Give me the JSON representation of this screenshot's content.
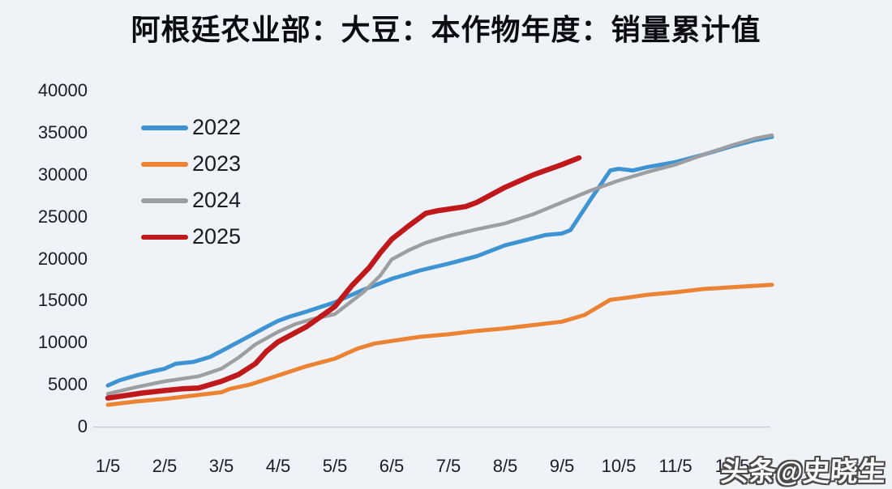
{
  "watermark": "头条@史晓生",
  "colors": {
    "background": "#eff2f7",
    "axis_line": "#c9cdd5",
    "tick_text": "#1c1c26",
    "title_text": "#0b0b12"
  },
  "chart_data": {
    "type": "line",
    "title": "阿根廷农业部：大豆：本作物年度：销量累计值",
    "xlabel": "",
    "ylabel": "",
    "x_tick_labels": [
      "1/5",
      "2/5",
      "3/5",
      "4/5",
      "5/5",
      "6/5",
      "7/5",
      "8/5",
      "9/5",
      "10/5",
      "11/5",
      "12/5"
    ],
    "y_ticks": [
      0,
      5000,
      10000,
      15000,
      20000,
      25000,
      30000,
      35000,
      40000
    ],
    "ylim": [
      0,
      40000
    ],
    "xlim_months": [
      1,
      12.7
    ],
    "grid": false,
    "legend_position": "upper-left-inside",
    "units_note": "cumulative sales, months labeled as day/5",
    "series": [
      {
        "name": "2022",
        "color": "#3e93d3",
        "stroke_width": 5,
        "points": [
          [
            1,
            4900
          ],
          [
            1.2,
            5500
          ],
          [
            1.5,
            6100
          ],
          [
            1.8,
            6600
          ],
          [
            2,
            6900
          ],
          [
            2.2,
            7500
          ],
          [
            2.5,
            7700
          ],
          [
            2.8,
            8300
          ],
          [
            3,
            9000
          ],
          [
            3.5,
            10800
          ],
          [
            3.8,
            11900
          ],
          [
            4,
            12600
          ],
          [
            4.2,
            13100
          ],
          [
            4.5,
            13700
          ],
          [
            5,
            14800
          ],
          [
            5.5,
            16300
          ],
          [
            6,
            17600
          ],
          [
            6.5,
            18600
          ],
          [
            7,
            19400
          ],
          [
            7.5,
            20300
          ],
          [
            8,
            21600
          ],
          [
            8.3,
            22100
          ],
          [
            8.7,
            22800
          ],
          [
            9,
            23000
          ],
          [
            9.15,
            23400
          ],
          [
            9.5,
            27000
          ],
          [
            9.85,
            30500
          ],
          [
            10,
            30700
          ],
          [
            10.25,
            30500
          ],
          [
            10.5,
            30900
          ],
          [
            11,
            31500
          ],
          [
            11.5,
            32400
          ],
          [
            12,
            33400
          ],
          [
            12.4,
            34100
          ],
          [
            12.7,
            34500
          ]
        ]
      },
      {
        "name": "2023",
        "color": "#ec8333",
        "stroke_width": 5,
        "points": [
          [
            1,
            2600
          ],
          [
            1.5,
            3000
          ],
          [
            2,
            3300
          ],
          [
            2.5,
            3700
          ],
          [
            3,
            4100
          ],
          [
            3.15,
            4500
          ],
          [
            3.5,
            5000
          ],
          [
            4,
            6100
          ],
          [
            4.5,
            7200
          ],
          [
            5,
            8100
          ],
          [
            5.4,
            9300
          ],
          [
            5.7,
            9900
          ],
          [
            6,
            10200
          ],
          [
            6.5,
            10700
          ],
          [
            7,
            11000
          ],
          [
            7.5,
            11400
          ],
          [
            8,
            11700
          ],
          [
            8.5,
            12100
          ],
          [
            9,
            12500
          ],
          [
            9.4,
            13300
          ],
          [
            9.85,
            15100
          ],
          [
            10.2,
            15400
          ],
          [
            10.5,
            15700
          ],
          [
            11,
            16000
          ],
          [
            11.5,
            16400
          ],
          [
            12,
            16600
          ],
          [
            12.7,
            16900
          ]
        ]
      },
      {
        "name": "2024",
        "color": "#9c9ea1",
        "stroke_width": 4.5,
        "points": [
          [
            1,
            3900
          ],
          [
            1.5,
            4700
          ],
          [
            2,
            5400
          ],
          [
            2.3,
            5700
          ],
          [
            2.6,
            6000
          ],
          [
            3,
            6900
          ],
          [
            3.3,
            8200
          ],
          [
            3.6,
            9800
          ],
          [
            4,
            11300
          ],
          [
            4.3,
            12200
          ],
          [
            4.6,
            12800
          ],
          [
            5,
            13400
          ],
          [
            5.5,
            16000
          ],
          [
            5.8,
            18000
          ],
          [
            6,
            19900
          ],
          [
            6.3,
            21000
          ],
          [
            6.6,
            21900
          ],
          [
            7,
            22700
          ],
          [
            7.5,
            23500
          ],
          [
            8,
            24200
          ],
          [
            8.5,
            25300
          ],
          [
            9,
            26700
          ],
          [
            9.5,
            28100
          ],
          [
            10,
            29300
          ],
          [
            10.5,
            30300
          ],
          [
            11,
            31200
          ],
          [
            11.5,
            32400
          ],
          [
            12,
            33500
          ],
          [
            12.4,
            34300
          ],
          [
            12.7,
            34700
          ]
        ]
      },
      {
        "name": "2025",
        "color": "#c0191c",
        "stroke_width": 6.5,
        "points": [
          [
            1,
            3400
          ],
          [
            1.3,
            3700
          ],
          [
            1.6,
            4000
          ],
          [
            2,
            4300
          ],
          [
            2.3,
            4500
          ],
          [
            2.6,
            4600
          ],
          [
            3,
            5400
          ],
          [
            3.3,
            6200
          ],
          [
            3.6,
            7500
          ],
          [
            3.8,
            9000
          ],
          [
            4,
            10100
          ],
          [
            4.5,
            11900
          ],
          [
            5,
            14300
          ],
          [
            5.3,
            16800
          ],
          [
            5.6,
            18900
          ],
          [
            5.8,
            20700
          ],
          [
            6,
            22300
          ],
          [
            6.3,
            23900
          ],
          [
            6.6,
            25400
          ],
          [
            6.8,
            25700
          ],
          [
            7,
            25900
          ],
          [
            7.3,
            26200
          ],
          [
            7.5,
            26700
          ],
          [
            8,
            28500
          ],
          [
            8.5,
            30000
          ],
          [
            9,
            31200
          ],
          [
            9.3,
            32000
          ]
        ]
      }
    ]
  }
}
